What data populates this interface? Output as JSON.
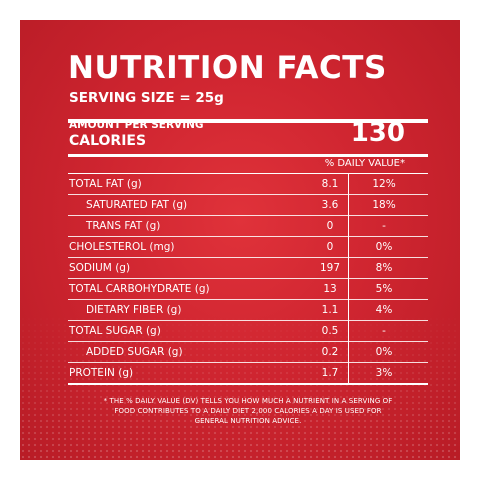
{
  "header": {
    "title": "NUTRITION FACTS",
    "serving_size": "SERVING SIZE = 25g"
  },
  "calories": {
    "amount_per_serving_label": "AMOUNT PER SERVING",
    "label": "CALORIES",
    "value": "130"
  },
  "daily_value_header": "% DAILY VALUE*",
  "nutrients": [
    {
      "name": "TOTAL FAT (g)",
      "amount": "8.1",
      "daily_value": "12%",
      "indent": false
    },
    {
      "name": "SATURATED FAT (g)",
      "amount": "3.6",
      "daily_value": "18%",
      "indent": true
    },
    {
      "name": "TRANS FAT (g)",
      "amount": "0",
      "daily_value": "-",
      "indent": true
    },
    {
      "name": "CHOLESTEROL (mg)",
      "amount": "0",
      "daily_value": "0%",
      "indent": false
    },
    {
      "name": "SODIUM (g)",
      "amount": "197",
      "daily_value": "8%",
      "indent": false
    },
    {
      "name": "TOTAL CARBOHYDRATE (g)",
      "amount": "13",
      "daily_value": "5%",
      "indent": false
    },
    {
      "name": "DIETARY FIBER (g)",
      "amount": "1.1",
      "daily_value": "4%",
      "indent": true
    },
    {
      "name": "TOTAL SUGAR (g)",
      "amount": "0.5",
      "daily_value": "-",
      "indent": false
    },
    {
      "name": "ADDED SUGAR (g)",
      "amount": "0.2",
      "daily_value": "0%",
      "indent": true
    },
    {
      "name": "PROTEIN (g)",
      "amount": "1.7",
      "daily_value": "3%",
      "indent": false
    }
  ],
  "footnote": "* THE % DAILY VALUE (DV) TELLS YOU HOW MUCH A NUTRIENT IN A SERVING OF FOOD CONTRIBUTES TO A DAILY DIET 2,000 CALORIES A DAY IS USED FOR GENERAL NUTRITION ADVICE.",
  "colors": {
    "background_red": "#cf2530",
    "text": "#ffffff",
    "border": "#ffffff"
  }
}
